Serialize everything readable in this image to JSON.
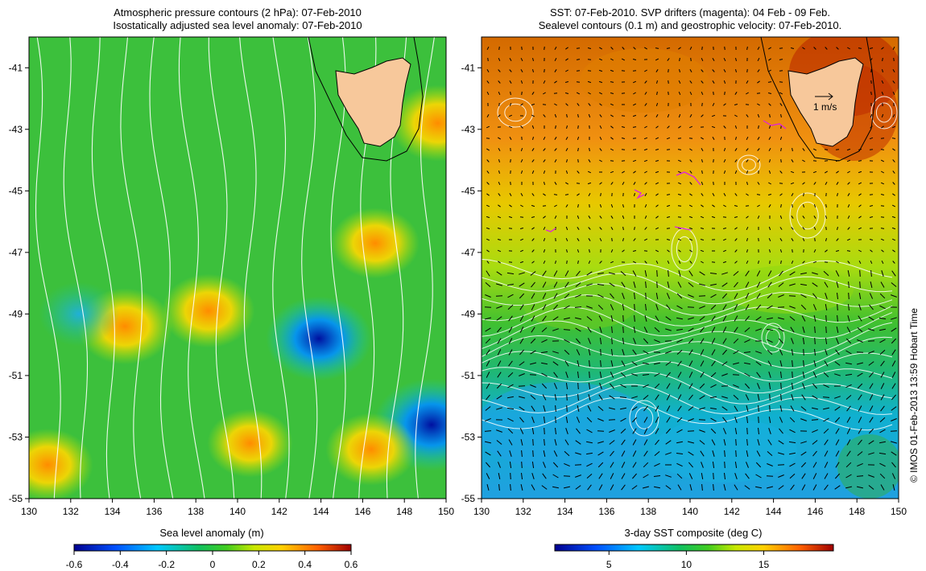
{
  "credit": "© IMOS 01-Feb-2013 13:59 Hobart Time",
  "colors": {
    "land": "#f7c89b",
    "frame": "#000000",
    "contour": "#ffffff",
    "arrow": "#000000",
    "drifter": "#e020e0"
  },
  "chart_data": [
    {
      "type": "heatmap",
      "title": "Atmospheric pressure contours (2 hPa): 07-Feb-2010",
      "subtitle": "Isostatically adjusted sea level anomaly: 07-Feb-2010",
      "xlabel": "",
      "ylabel": "",
      "xlim": [
        130,
        150
      ],
      "ylim": [
        -55,
        -40
      ],
      "x_ticks": [
        "130",
        "132",
        "134",
        "136",
        "138",
        "140",
        "142",
        "144",
        "146",
        "148",
        "150"
      ],
      "y_ticks": [
        "-41",
        "-43",
        "-45",
        "-47",
        "-49",
        "-51",
        "-53",
        "-55"
      ],
      "colorbar": {
        "label": "Sea level anomaly (m)",
        "range": [
          -0.6,
          0.6
        ],
        "ticks": [
          "-0.6",
          "-0.4",
          "-0.2",
          "0",
          "0.2",
          "0.4",
          "0.6"
        ]
      },
      "features": [
        {
          "lon": 134.6,
          "lat": -49.4,
          "value": 0.35
        },
        {
          "lon": 138.6,
          "lat": -48.9,
          "value": 0.32
        },
        {
          "lon": 143.9,
          "lat": -49.8,
          "value": -0.45
        },
        {
          "lon": 149.3,
          "lat": -52.6,
          "value": -0.55
        },
        {
          "lon": 130.9,
          "lat": -53.9,
          "value": 0.3
        },
        {
          "lon": 146.4,
          "lat": -53.4,
          "value": 0.3
        },
        {
          "lon": 149.6,
          "lat": -42.8,
          "value": 0.35
        },
        {
          "lon": 146.6,
          "lat": -46.7,
          "value": 0.28
        },
        {
          "lon": 132.4,
          "lat": -49.0,
          "value": -0.2
        },
        {
          "lon": 140.6,
          "lat": -53.2,
          "value": 0.25
        }
      ]
    },
    {
      "type": "heatmap",
      "title": "SST: 07-Feb-2010. SVP drifters (magenta): 04 Feb - 09 Feb.",
      "subtitle": "Sealevel contours (0.1 m) and geostrophic velocity: 07-Feb-2010.",
      "xlabel": "",
      "ylabel": "",
      "xlim": [
        130,
        150
      ],
      "ylim": [
        -55,
        -40
      ],
      "x_ticks": [
        "130",
        "132",
        "134",
        "136",
        "138",
        "140",
        "142",
        "144",
        "146",
        "148",
        "150"
      ],
      "y_ticks": [
        "-41",
        "-43",
        "-45",
        "-47",
        "-49",
        "-51",
        "-53",
        "-55"
      ],
      "colorbar": {
        "label": "3-day SST composite (deg C)",
        "range": [
          1.5,
          19.5
        ],
        "ticks": [
          "5",
          "10",
          "15"
        ]
      },
      "velocity_scale_label": "1 m/s",
      "sst_by_latitude": [
        {
          "lat": -41,
          "sst": 16.5
        },
        {
          "lat": -43,
          "sst": 15.5
        },
        {
          "lat": -45,
          "sst": 13.8
        },
        {
          "lat": -47,
          "sst": 12.0
        },
        {
          "lat": -49,
          "sst": 10.5
        },
        {
          "lat": -51,
          "sst": 9.2
        },
        {
          "lat": -53,
          "sst": 6.8
        },
        {
          "lat": -55,
          "sst": 6.0
        }
      ]
    }
  ]
}
